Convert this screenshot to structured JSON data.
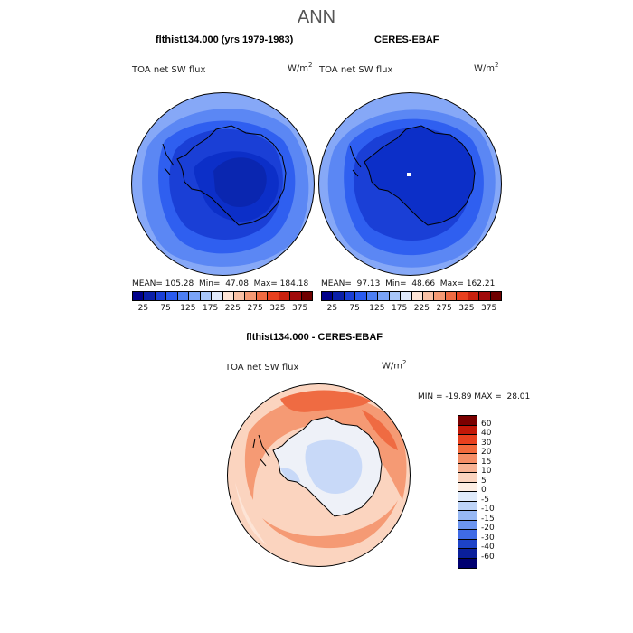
{
  "title": "ANN",
  "panels": [
    {
      "title": "flthist134.000 (yrs 1979-1983)",
      "variable": "TOA net SW flux",
      "units": "W/m",
      "units_exp": "2",
      "stats": "MEAN= 105.28  Min=  47.08  Max= 184.18"
    },
    {
      "title": "CERES-EBAF",
      "variable": "TOA net SW flux",
      "units": "W/m",
      "units_exp": "2",
      "stats": "MEAN=  97.13  Min=  48.66  Max= 162.21"
    }
  ],
  "diff_panel": {
    "title": "flthist134.000 - CERES-EBAF",
    "variable": "TOA net SW flux",
    "units": "W/m",
    "units_exp": "2",
    "stats": "MIN = -19.89 MAX =  28.01"
  },
  "colorbar_main": {
    "labels": [
      "25",
      "75",
      "125",
      "175",
      "225",
      "275",
      "325",
      "375"
    ],
    "colors": [
      "#00008a",
      "#0a1fa8",
      "#1a3fd6",
      "#2a5bef",
      "#4d7ff4",
      "#7aa3f7",
      "#a8c6f9",
      "#dfe9fb",
      "#fde4d6",
      "#f9c1a5",
      "#f59a74",
      "#ef6b42",
      "#e8401e",
      "#c9210e",
      "#a00a0a",
      "#6e0000"
    ]
  },
  "colorbar_diff": {
    "labels": [
      "60",
      "40",
      "30",
      "20",
      "15",
      "10",
      "5",
      "0",
      "-5",
      "-10",
      "-15",
      "-20",
      "-30",
      "-40",
      "-60"
    ],
    "colors": [
      "#7a0000",
      "#c21808",
      "#e8401e",
      "#f26a3c",
      "#f58e66",
      "#f8b394",
      "#fbd4bf",
      "#fdeee4",
      "#e0ebfb",
      "#bed4f8",
      "#97b8f4",
      "#6c95ef",
      "#3f6be6",
      "#1d43c8",
      "#0a1f9b",
      "#000070"
    ]
  },
  "map_colors": {
    "land_deep": "#0c2fc8",
    "land": "#1a3fd6",
    "ocean_inner": "#2f5ff0",
    "ocean_mid": "#5b87f4",
    "ocean_outer": "#86a8f7",
    "diff_pos_strong": "#ef6b42",
    "diff_pos": "#f59a74",
    "diff_pos_weak": "#f9c1a5",
    "diff_pale": "#fde4d6",
    "diff_neg": "#c8d9f8",
    "diff_neutral": "#eef1f8"
  }
}
